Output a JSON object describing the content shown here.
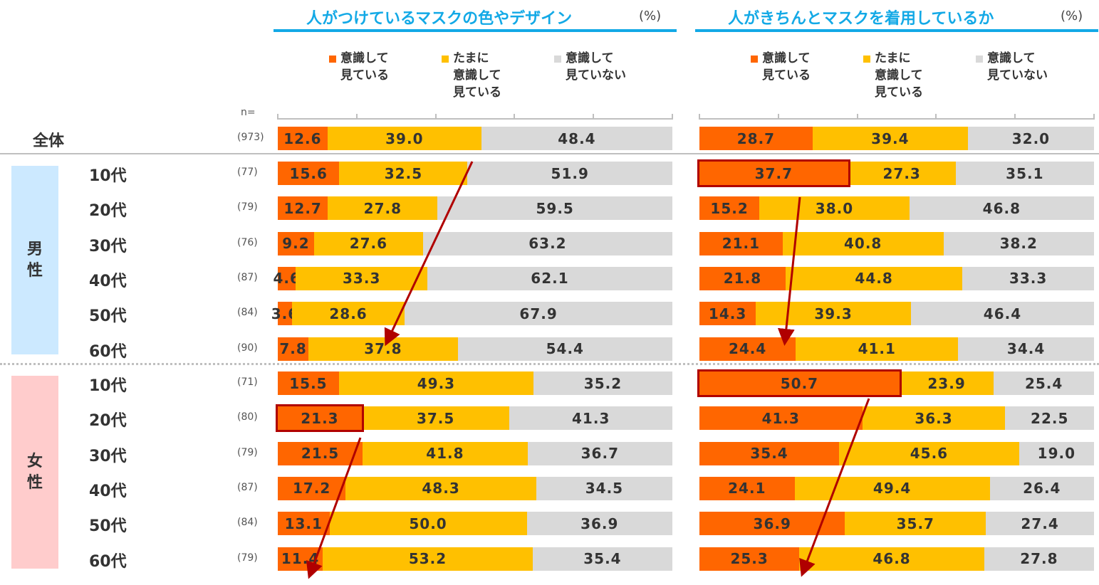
{
  "chart_data": [
    {
      "type": "bar",
      "stacked": true,
      "orientation": "horizontal",
      "title": "人がつけているマスクの色やデザイン",
      "unit": "(%)",
      "legend": [
        "■ 意識して\n見ている",
        "■ たまに\n意識して\n見ている",
        "■ 意識して\n見ていない"
      ],
      "series_names": [
        "意識して見ている",
        "たまに意識して見ている",
        "意識して見ていない"
      ],
      "colors": [
        "#ff6600",
        "#ffc000",
        "#d9d9d9"
      ],
      "values": [
        [
          12.6,
          39.0,
          48.4
        ],
        [
          15.6,
          32.5,
          51.9
        ],
        [
          12.7,
          27.8,
          59.5
        ],
        [
          9.2,
          27.6,
          63.2
        ],
        [
          4.6,
          33.3,
          62.1
        ],
        [
          3.6,
          28.6,
          67.9
        ],
        [
          7.8,
          37.8,
          54.4
        ],
        [
          15.5,
          49.3,
          35.2
        ],
        [
          21.3,
          37.5,
          41.3
        ],
        [
          21.5,
          41.8,
          36.7
        ],
        [
          17.2,
          48.3,
          34.5
        ],
        [
          13.1,
          50.0,
          36.9
        ],
        [
          11.4,
          53.2,
          35.4
        ]
      ],
      "highlight_rows": [
        8
      ],
      "xlim": [
        0,
        100
      ]
    },
    {
      "type": "bar",
      "stacked": true,
      "orientation": "horizontal",
      "title": "人がきちんとマスクを着用しているか",
      "unit": "(%)",
      "legend": [
        "■ 意識して\n見ている",
        "■ たまに\n意識して\n見ている",
        "■ 意識して\n見ていない"
      ],
      "series_names": [
        "意識して見ている",
        "たまに意識して見ている",
        "意識して見ていない"
      ],
      "colors": [
        "#ff6600",
        "#ffc000",
        "#d9d9d9"
      ],
      "values": [
        [
          28.7,
          39.4,
          32.0
        ],
        [
          37.7,
          27.3,
          35.1
        ],
        [
          15.2,
          38.0,
          46.8
        ],
        [
          21.1,
          40.8,
          38.2
        ],
        [
          21.8,
          44.8,
          33.3
        ],
        [
          14.3,
          39.3,
          46.4
        ],
        [
          24.4,
          41.1,
          34.4
        ],
        [
          50.7,
          23.9,
          25.4
        ],
        [
          41.3,
          36.3,
          22.5
        ],
        [
          35.4,
          45.6,
          19.0
        ],
        [
          24.1,
          49.4,
          26.4
        ],
        [
          36.9,
          35.7,
          27.4
        ],
        [
          25.3,
          46.8,
          27.8
        ]
      ],
      "highlight_rows": [
        1,
        7
      ],
      "xlim": [
        0,
        100
      ]
    }
  ],
  "rows": {
    "n_header": "n=",
    "labels": [
      "全体",
      "10代",
      "20代",
      "30代",
      "40代",
      "50代",
      "60代",
      "10代",
      "20代",
      "30代",
      "40代",
      "50代",
      "60代"
    ],
    "n": [
      "(973)",
      "(77)",
      "(79)",
      "(76)",
      "(87)",
      "(84)",
      "(90)",
      "(71)",
      "(80)",
      "(79)",
      "(87)",
      "(84)",
      "(79)"
    ]
  },
  "groups": {
    "male": "男\n性",
    "female": "女\n性"
  }
}
